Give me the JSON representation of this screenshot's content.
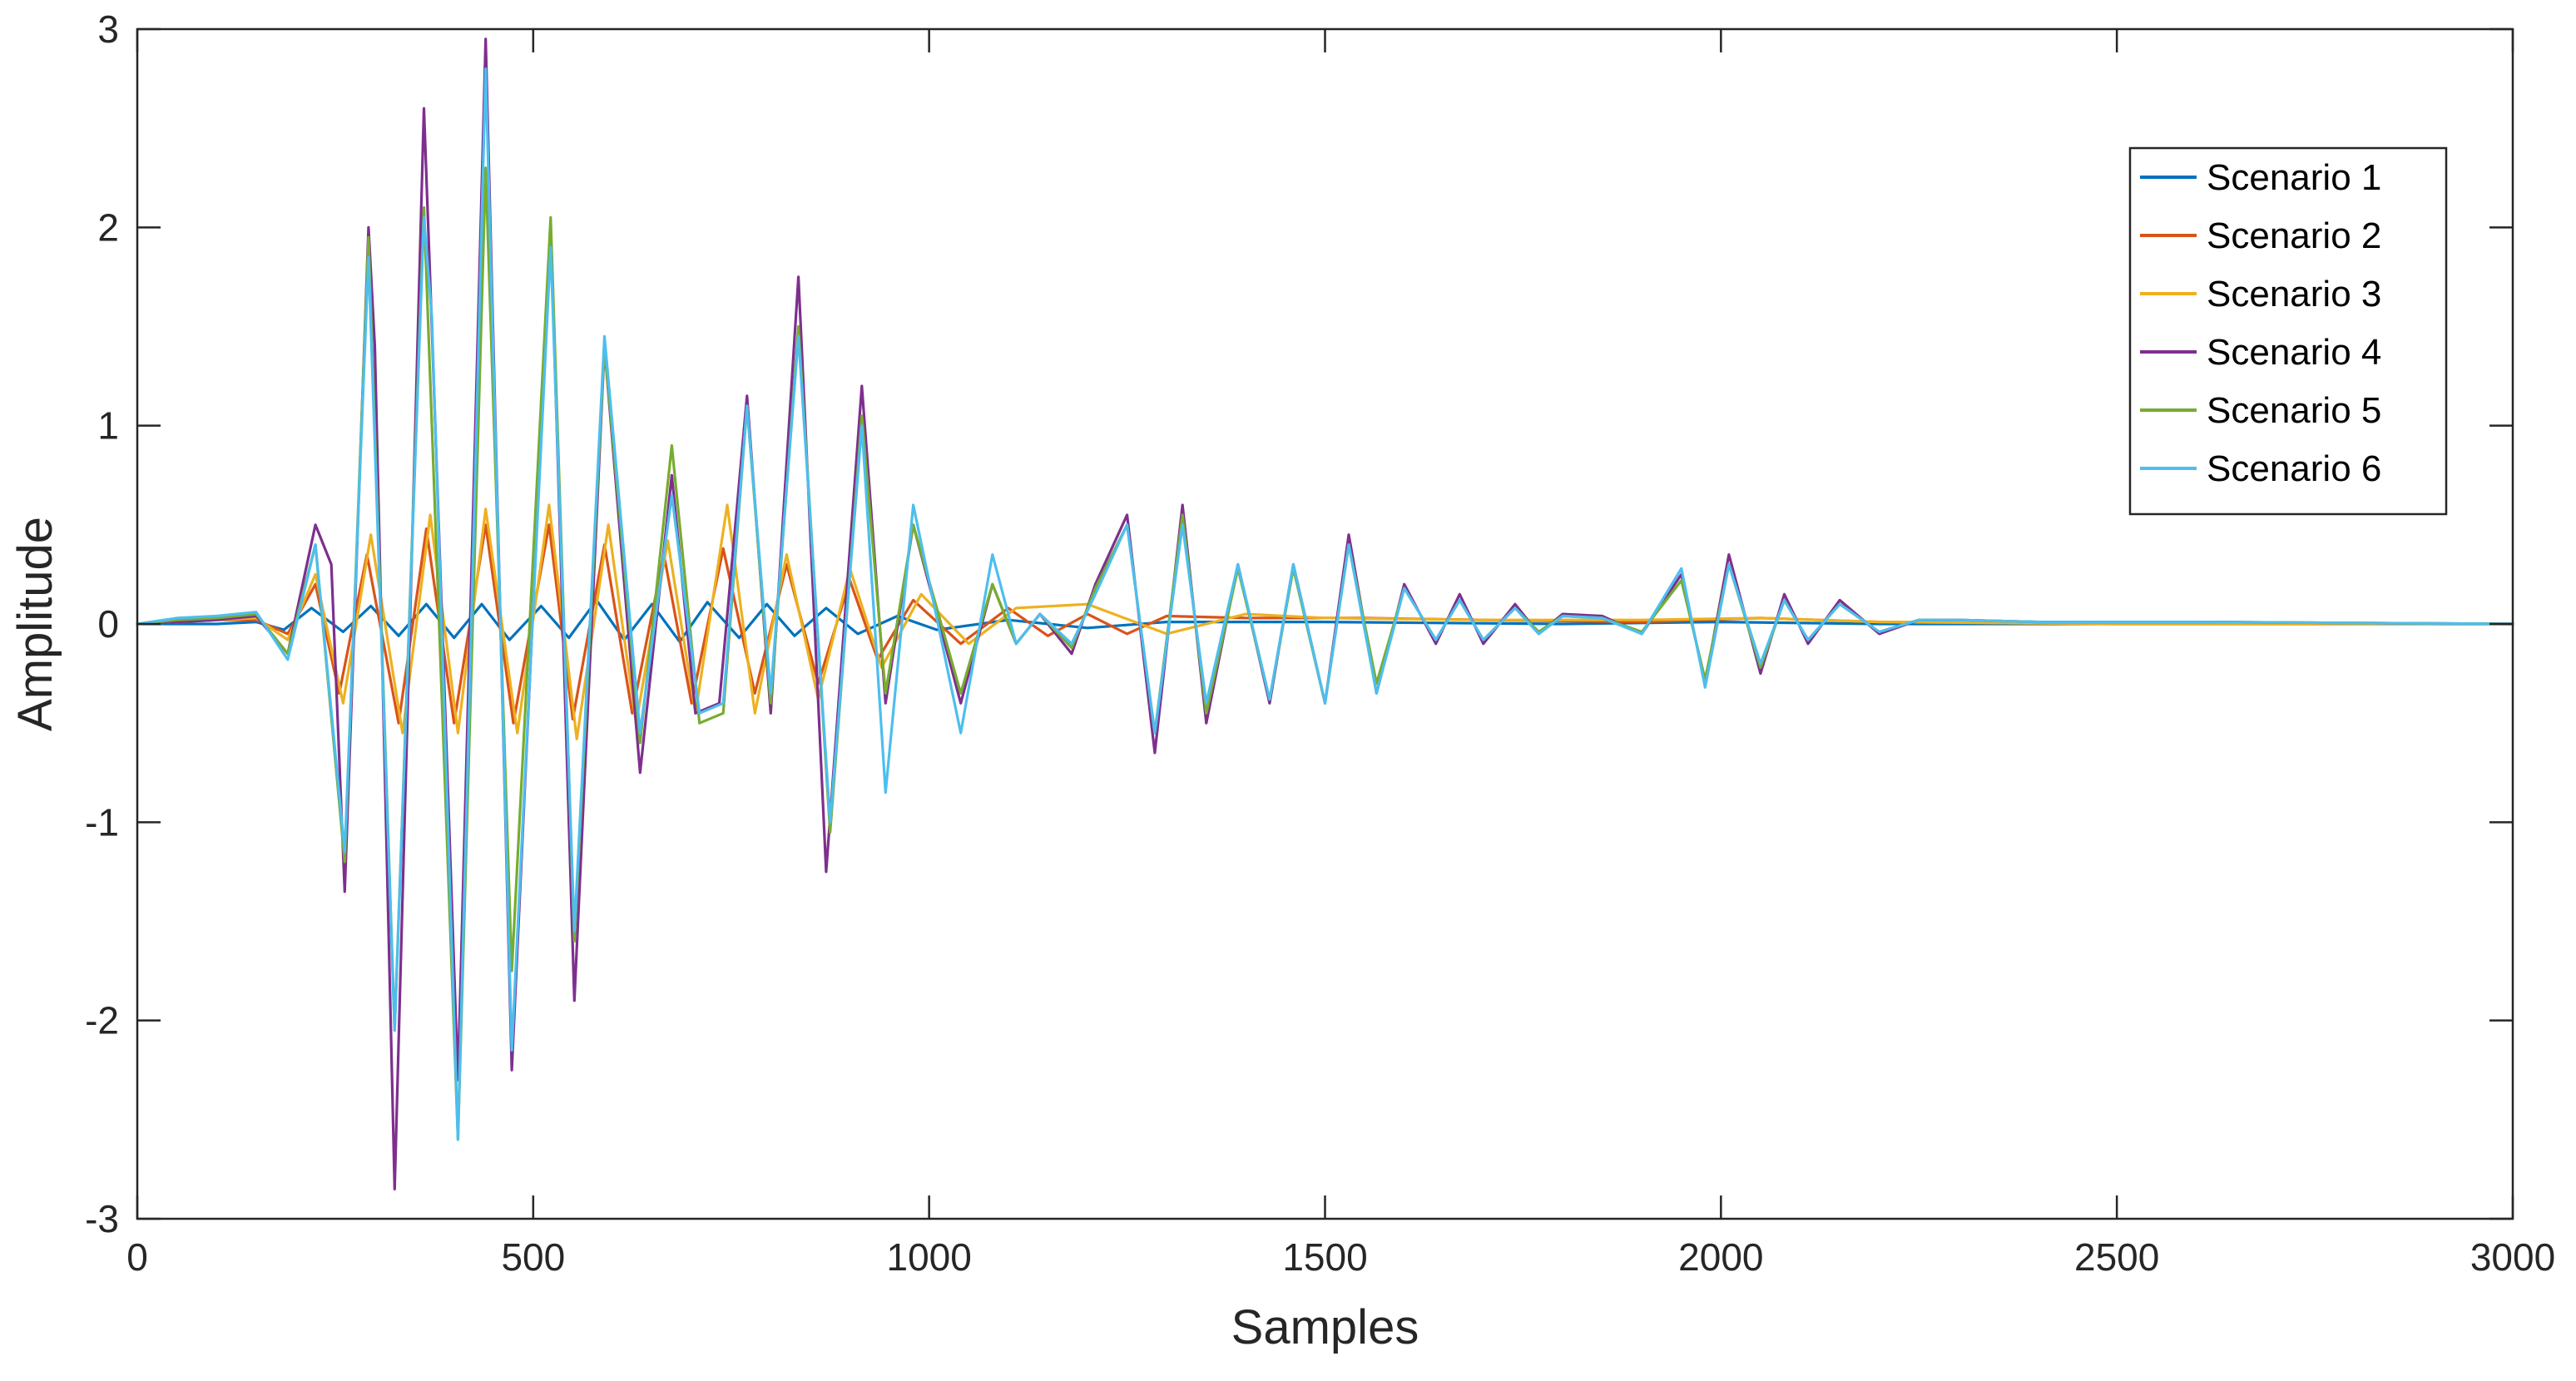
{
  "chart_data": {
    "type": "line",
    "title": "",
    "xlabel": "Samples",
    "ylabel": "Amplitude",
    "xlim": [
      0,
      3000
    ],
    "ylim": [
      -3,
      3
    ],
    "xticks": [
      0,
      500,
      1000,
      1500,
      2000,
      2500,
      3000
    ],
    "yticks": [
      -3,
      -2,
      -1,
      0,
      1,
      2,
      3
    ],
    "grid": false,
    "legend_position": "top-right",
    "series": [
      {
        "name": "Scenario 1",
        "color": "#0072BD",
        "x": [
          0,
          100,
          150,
          185,
          220,
          260,
          295,
          330,
          365,
          400,
          435,
          470,
          510,
          545,
          580,
          615,
          650,
          685,
          720,
          760,
          795,
          830,
          870,
          910,
          960,
          1010,
          1100,
          1200,
          1300,
          1500,
          1800,
          2000,
          2200,
          2500,
          3000
        ],
        "y": [
          0,
          0,
          0.01,
          -0.03,
          0.08,
          -0.04,
          0.09,
          -0.06,
          0.1,
          -0.07,
          0.1,
          -0.08,
          0.09,
          -0.07,
          0.12,
          -0.08,
          0.1,
          -0.09,
          0.11,
          -0.07,
          0.1,
          -0.06,
          0.08,
          -0.05,
          0.04,
          -0.03,
          0.02,
          -0.02,
          0.01,
          0.01,
          0,
          0.01,
          0,
          0,
          0
        ]
      },
      {
        "name": "Scenario 2",
        "color": "#D95319",
        "x": [
          0,
          100,
          150,
          190,
          225,
          255,
          290,
          330,
          365,
          400,
          440,
          475,
          520,
          550,
          590,
          625,
          665,
          700,
          740,
          780,
          820,
          860,
          900,
          935,
          980,
          1040,
          1100,
          1150,
          1200,
          1250,
          1300,
          1400,
          1550,
          1700,
          1900,
          2050,
          2200,
          2500,
          3000
        ],
        "y": [
          0,
          0.02,
          0.02,
          -0.05,
          0.2,
          -0.35,
          0.35,
          -0.5,
          0.48,
          -0.5,
          0.5,
          -0.5,
          0.5,
          -0.48,
          0.4,
          -0.45,
          0.35,
          -0.4,
          0.38,
          -0.35,
          0.3,
          -0.3,
          0.22,
          -0.18,
          0.12,
          -0.1,
          0.08,
          -0.06,
          0.05,
          -0.05,
          0.04,
          0.03,
          0.03,
          0.02,
          0.01,
          0.03,
          0.01,
          0,
          0
        ]
      },
      {
        "name": "Scenario 3",
        "color": "#EDB120",
        "x": [
          0,
          100,
          150,
          190,
          225,
          260,
          295,
          335,
          370,
          405,
          440,
          480,
          520,
          555,
          595,
          630,
          670,
          705,
          745,
          780,
          820,
          860,
          900,
          940,
          990,
          1050,
          1110,
          1200,
          1300,
          1400,
          1500,
          1700,
          1900,
          2050,
          2200,
          2500,
          3000
        ],
        "y": [
          0,
          0.02,
          0.03,
          -0.08,
          0.25,
          -0.4,
          0.45,
          -0.55,
          0.55,
          -0.55,
          0.58,
          -0.55,
          0.6,
          -0.58,
          0.5,
          -0.5,
          0.42,
          -0.45,
          0.6,
          -0.45,
          0.35,
          -0.38,
          0.28,
          -0.22,
          0.15,
          -0.1,
          0.08,
          0.1,
          -0.05,
          0.05,
          0.03,
          0.02,
          0.02,
          0.03,
          0.01,
          0,
          0
        ]
      },
      {
        "name": "Scenario 4",
        "color": "#7E2F8E",
        "x": [
          0,
          50,
          100,
          150,
          190,
          225,
          245,
          262,
          292,
          300,
          325,
          362,
          372,
          405,
          440,
          473,
          522,
          552,
          590,
          635,
          675,
          705,
          735,
          770,
          800,
          835,
          870,
          915,
          945,
          980,
          1040,
          1080,
          1110,
          1140,
          1180,
          1210,
          1250,
          1285,
          1320,
          1350,
          1390,
          1430,
          1460,
          1500,
          1530,
          1565,
          1600,
          1640,
          1670,
          1700,
          1740,
          1770,
          1800,
          1850,
          1900,
          1950,
          1980,
          2010,
          2050,
          2080,
          2110,
          2150,
          2200,
          2250,
          2300,
          2400,
          2600,
          3000
        ],
        "y": [
          0,
          0.01,
          0.02,
          0.04,
          -0.15,
          0.5,
          0.3,
          -1.35,
          2.0,
          1.4,
          -2.85,
          2.6,
          1.5,
          -2.3,
          2.95,
          -2.25,
          2.0,
          -1.9,
          1.4,
          -0.75,
          0.75,
          -0.45,
          -0.4,
          1.15,
          -0.45,
          1.75,
          -1.25,
          1.2,
          -0.4,
          0.5,
          -0.4,
          0.2,
          -0.1,
          0.05,
          -0.15,
          0.2,
          0.55,
          -0.65,
          0.6,
          -0.5,
          0.3,
          -0.4,
          0.3,
          -0.4,
          0.45,
          -0.35,
          0.2,
          -0.1,
          0.15,
          -0.1,
          0.1,
          -0.05,
          0.05,
          0.04,
          -0.05,
          0.25,
          -0.3,
          0.35,
          -0.25,
          0.15,
          -0.1,
          0.12,
          -0.05,
          0.02,
          0.02,
          0.01,
          0.01,
          0
        ]
      },
      {
        "name": "Scenario 5",
        "color": "#77AC30",
        "x": [
          0,
          50,
          100,
          150,
          190,
          225,
          262,
          292,
          325,
          362,
          405,
          440,
          473,
          522,
          552,
          590,
          635,
          675,
          710,
          740,
          770,
          800,
          835,
          875,
          915,
          945,
          980,
          1040,
          1080,
          1110,
          1140,
          1180,
          1210,
          1250,
          1285,
          1320,
          1350,
          1390,
          1430,
          1460,
          1500,
          1530,
          1565,
          1600,
          1640,
          1670,
          1700,
          1740,
          1770,
          1800,
          1850,
          1900,
          1950,
          1980,
          2010,
          2050,
          2080,
          2110,
          2150,
          2200,
          2250,
          2300,
          2400,
          2600,
          3000
        ],
        "y": [
          0,
          0.02,
          0.03,
          0.05,
          -0.15,
          0.4,
          -1.2,
          1.95,
          -2.05,
          2.1,
          -2.6,
          2.3,
          -1.75,
          2.05,
          -1.6,
          1.4,
          -0.6,
          0.9,
          -0.5,
          -0.45,
          1.1,
          -0.4,
          1.5,
          -1.05,
          1.05,
          -0.35,
          0.5,
          -0.35,
          0.2,
          -0.1,
          0.05,
          -0.12,
          0.18,
          0.5,
          -0.55,
          0.55,
          -0.45,
          0.28,
          -0.38,
          0.28,
          -0.4,
          0.4,
          -0.3,
          0.18,
          -0.08,
          0.12,
          -0.08,
          0.08,
          -0.04,
          0.04,
          0.03,
          -0.04,
          0.22,
          -0.28,
          0.3,
          -0.22,
          0.12,
          -0.08,
          0.1,
          -0.04,
          0.02,
          0.02,
          0.01,
          0.01,
          0
        ]
      },
      {
        "name": "Scenario 6",
        "color": "#4DBEEE",
        "x": [
          0,
          50,
          100,
          150,
          190,
          225,
          262,
          292,
          325,
          362,
          372,
          405,
          440,
          473,
          522,
          552,
          590,
          635,
          675,
          710,
          740,
          770,
          800,
          835,
          875,
          915,
          945,
          980,
          1040,
          1080,
          1110,
          1140,
          1180,
          1210,
          1250,
          1285,
          1320,
          1350,
          1390,
          1430,
          1460,
          1500,
          1530,
          1565,
          1600,
          1640,
          1670,
          1700,
          1740,
          1770,
          1800,
          1850,
          1900,
          1950,
          1980,
          2010,
          2050,
          2080,
          2110,
          2150,
          2200,
          2250,
          2300,
          2400,
          2600,
          3000
        ],
        "y": [
          0,
          0.03,
          0.04,
          0.06,
          -0.18,
          0.4,
          -1.15,
          1.85,
          -2.05,
          2.05,
          1.55,
          -2.6,
          2.8,
          -2.15,
          1.9,
          -1.55,
          1.45,
          -0.55,
          0.65,
          -0.45,
          -0.4,
          1.1,
          -0.35,
          1.45,
          -1.0,
          1.0,
          -0.85,
          0.6,
          -0.55,
          0.35,
          -0.1,
          0.05,
          -0.1,
          0.15,
          0.5,
          -0.55,
          0.5,
          -0.4,
          0.3,
          -0.38,
          0.3,
          -0.4,
          0.4,
          -0.35,
          0.18,
          -0.08,
          0.12,
          -0.08,
          0.08,
          -0.05,
          0.04,
          0.03,
          -0.05,
          0.28,
          -0.32,
          0.3,
          -0.2,
          0.12,
          -0.08,
          0.1,
          -0.04,
          0.02,
          0.02,
          0.01,
          0.01,
          0
        ]
      }
    ]
  }
}
